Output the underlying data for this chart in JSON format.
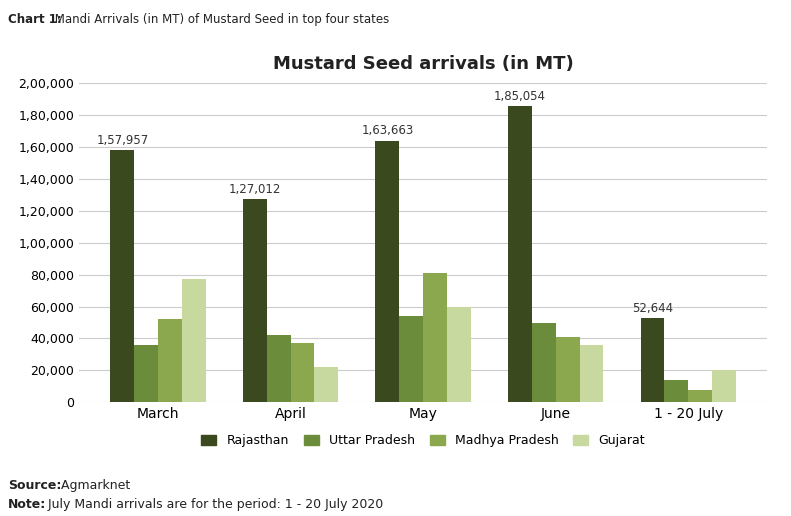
{
  "title": "Mustard Seed arrivals (in MT)",
  "chart_label_bold": "Chart 1:",
  "chart_label_rest": " Mandi Arrivals (in MT) of Mustard Seed in top four states",
  "source_bold": "Source:",
  "source_rest": " Agmarknet",
  "note_bold": "Note:",
  "note_rest": " July Mandi arrivals are for the period: 1 - 20 July 2020",
  "categories": [
    "March",
    "April",
    "May",
    "June",
    "1 - 20 July"
  ],
  "series": {
    "Rajasthan": [
      157957,
      127012,
      163663,
      185054,
      52644
    ],
    "Uttar Pradesh": [
      36000,
      42000,
      54000,
      50000,
      14000
    ],
    "Madhya Pradesh": [
      52000,
      37000,
      81000,
      41000,
      8000
    ],
    "Gujarat": [
      77000,
      22000,
      60000,
      36000,
      20000
    ]
  },
  "bar_labels": {
    "Rajasthan": [
      "1,57,957",
      "1,27,012",
      "1,63,663",
      "1,85,054",
      "52,644"
    ]
  },
  "colors": {
    "Rajasthan": "#3b4a1e",
    "Uttar Pradesh": "#6b8c3b",
    "Madhya Pradesh": "#8ca84e",
    "Gujarat": "#c8d9a0"
  },
  "ylim": [
    0,
    200000
  ],
  "ytick_step": 20000,
  "background_color": "#ffffff",
  "grid_color": "#cccccc",
  "title_fontsize": 13,
  "label_fontsize": 8.5,
  "tick_fontsize": 9,
  "legend_fontsize": 9,
  "bar_width": 0.18,
  "figsize": [
    7.91,
    5.16
  ],
  "dpi": 100
}
